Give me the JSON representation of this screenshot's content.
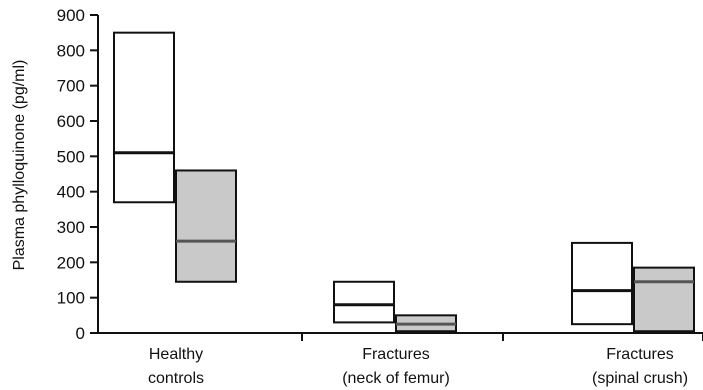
{
  "chart_data": {
    "type": "box",
    "ylabel": "Plasma phylloquinone (pg/ml)",
    "ylim": [
      0,
      900
    ],
    "yticks": [
      "0",
      "100",
      "200",
      "300",
      "400",
      "500",
      "600",
      "700",
      "800",
      "900"
    ],
    "yticks_values": [
      0,
      100,
      200,
      300,
      400,
      500,
      600,
      700,
      800,
      900
    ],
    "categories": [
      {
        "line1": "Healthy",
        "line2": "controls"
      },
      {
        "line1": "Fractures",
        "line2": "(neck of femur)"
      },
      {
        "line1": "Fractures",
        "line2": "(spinal crush)"
      }
    ],
    "series": [
      {
        "style": "open",
        "fill": "#ffffff",
        "boxes": [
          {
            "low": 370,
            "median": 510,
            "high": 850
          },
          {
            "low": 30,
            "median": 80,
            "high": 145
          },
          {
            "low": 25,
            "median": 120,
            "high": 255
          }
        ]
      },
      {
        "style": "shaded",
        "fill": "#c9c9c9",
        "boxes": [
          {
            "low": 145,
            "median": 260,
            "high": 460
          },
          {
            "low": 5,
            "median": 25,
            "high": 50
          },
          {
            "low": 5,
            "median": 145,
            "high": 185
          }
        ]
      }
    ],
    "grid": false,
    "legend": "none"
  }
}
